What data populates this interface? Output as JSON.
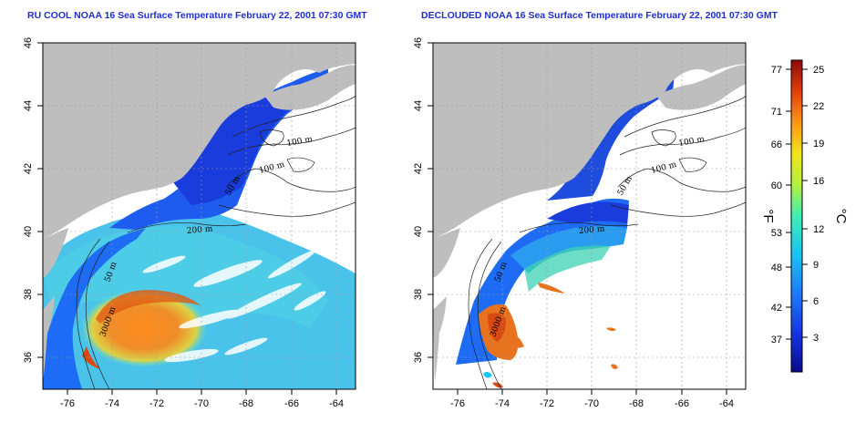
{
  "titles": {
    "left": "RU COOL NOAA 16 Sea Surface Temperature February 22, 2001 07:30 GMT",
    "right": "DECLOUDED NOAA 16 Sea Surface Temperature February 22, 2001 07:30 GMT"
  },
  "axes": {
    "lon_ticks": [
      "-76",
      "-74",
      "-72",
      "-70",
      "-68",
      "-66",
      "-64"
    ],
    "lat_ticks": [
      "36",
      "38",
      "40",
      "42",
      "44",
      "46"
    ]
  },
  "contours": {
    "left": [
      "100 m",
      "100 m",
      "50 m",
      "200 m",
      "50 m",
      "3000 m"
    ],
    "right": [
      "100 m",
      "100 m",
      "50 m",
      "200 m",
      "50 m",
      "3000 m"
    ]
  },
  "colorbar": {
    "fahrenheit_unit": "°F",
    "celsius_unit": "°C",
    "fahrenheit_ticks": [
      "77",
      "71",
      "66",
      "60",
      "53",
      "48",
      "42",
      "37"
    ],
    "celsius_ticks": [
      "25",
      "22",
      "19",
      "16",
      "12",
      "9",
      "6",
      "3"
    ],
    "colors": [
      "#0a0a8c",
      "#1432e6",
      "#1e78ff",
      "#14c8f0",
      "#3cf0b4",
      "#b4f03c",
      "#f0e614",
      "#ff9614",
      "#e63c0a",
      "#8c0a0a"
    ]
  },
  "colors": {
    "land": "#bebebe",
    "title": "#1f2fd0"
  }
}
